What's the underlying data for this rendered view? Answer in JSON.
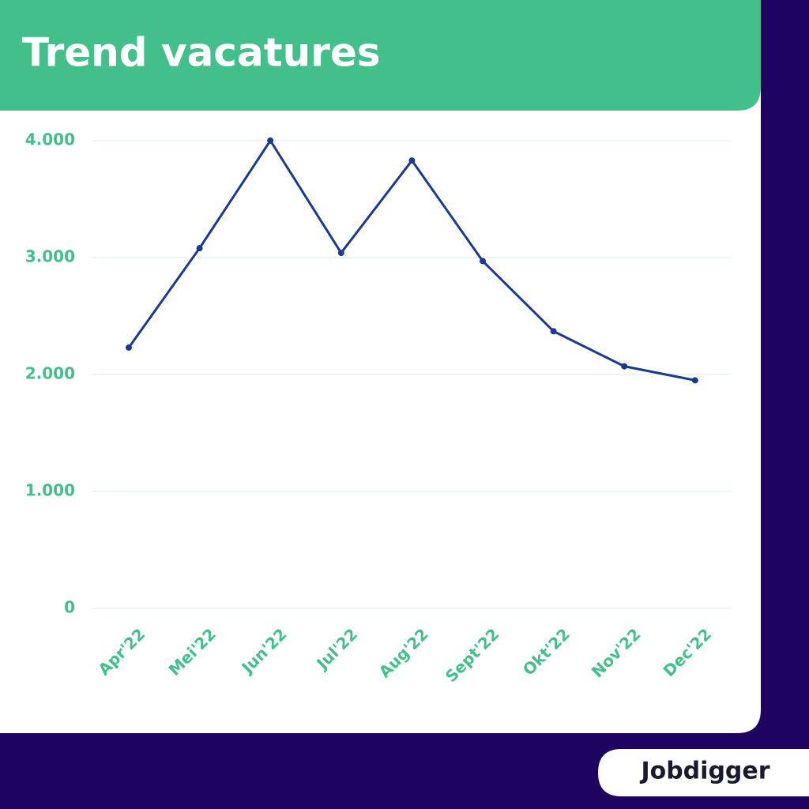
{
  "chart_data": {
    "type": "line",
    "title": "Trend vacatures",
    "categories": [
      "Apr'22",
      "Mei'22",
      "Jun'22",
      "Jul'22",
      "Aug'22",
      "Sept'22",
      "Okt'22",
      "Nov'22",
      "Dec'22"
    ],
    "series": [
      {
        "color": "#1b3a8f",
        "values": [
          2230,
          3080,
          4000,
          3040,
          3830,
          2970,
          2370,
          2070,
          1950
        ]
      }
    ],
    "ylim": [
      0,
      4000
    ],
    "yticks": [
      0,
      {
        "value": 1000,
        "label": "1.000"
      },
      {
        "value": 2000,
        "label": "2.000"
      },
      {
        "value": 3000,
        "label": "3.000"
      },
      {
        "value": 4000,
        "label": "4.000"
      }
    ],
    "grid": true
  },
  "brand": "Jobdigger"
}
